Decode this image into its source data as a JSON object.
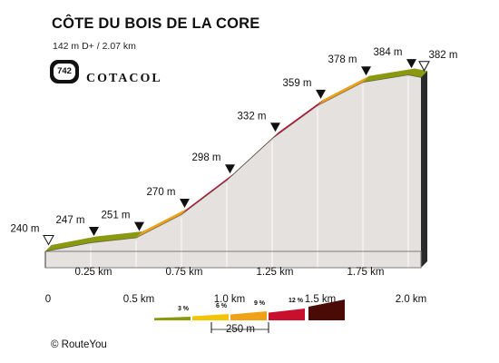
{
  "header": {
    "title": "CÔTE DU BOIS DE LA CORE",
    "subtitle": "142 m D+ / 2.07 km",
    "badge_number": "742",
    "brand": "COTACOL"
  },
  "footer": {
    "copyright": "© RouteYou"
  },
  "chart_data": {
    "type": "area",
    "title": "CÔTE DU BOIS DE LA CORE",
    "subtitle": "142 m D+ / 2.07 km",
    "x_unit": "km",
    "y_unit": "m",
    "x_ticks": [
      "0",
      "0.25 km",
      "0.5 km",
      "0.75 km",
      "1.0 km",
      "1.25 km",
      "1.5 km",
      "1.75 km",
      "2.0 km"
    ],
    "points": [
      {
        "x": 0.0,
        "y": 240,
        "label": "240 m"
      },
      {
        "x": 0.25,
        "y": 247,
        "label": "247 m"
      },
      {
        "x": 0.5,
        "y": 251,
        "label": "251 m"
      },
      {
        "x": 0.75,
        "y": 270,
        "label": "270 m"
      },
      {
        "x": 1.0,
        "y": 298,
        "label": "298 m"
      },
      {
        "x": 1.25,
        "y": 332,
        "label": "332 m"
      },
      {
        "x": 1.5,
        "y": 359,
        "label": "359 m"
      },
      {
        "x": 1.75,
        "y": 378,
        "label": "378 m"
      },
      {
        "x": 2.0,
        "y": 384,
        "label": "384 m"
      },
      {
        "x": 2.07,
        "y": 382,
        "label": "382 m"
      }
    ],
    "segment_gradients_pct": [
      2.8,
      1.6,
      7.6,
      11.2,
      13.6,
      10.8,
      7.6,
      2.4,
      -2.9
    ],
    "legend": {
      "gradient_labels": [
        "3 %",
        "6 %",
        "9 %",
        "12 %"
      ],
      "scale_label": "250 m",
      "colors": [
        "#8a9a0c",
        "#f5c400",
        "#f0a216",
        "#c8102e",
        "#4a0b06"
      ]
    },
    "colors": {
      "band_0_3": "#8a9a0c",
      "band_3_6": "#f5c400",
      "band_6_9": "#f0a216",
      "band_9_12": "#c8102e",
      "band_12_plus": "#4a0b06",
      "profile_fill": "#e5e1de",
      "profile_dark": "#2a2a2a"
    }
  }
}
